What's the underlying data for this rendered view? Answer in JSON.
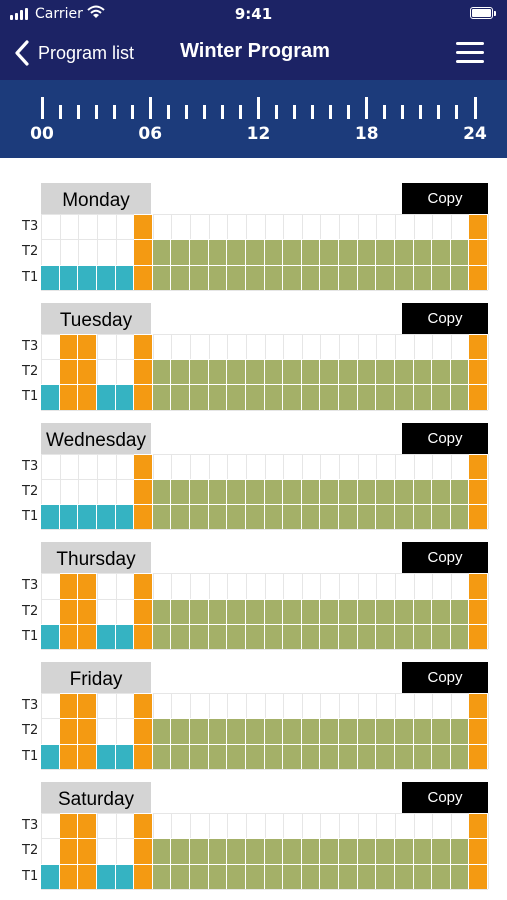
{
  "status_bar": {
    "carrier": "Carrier",
    "time": "9:41"
  },
  "nav": {
    "back_label": "Program list",
    "title": "Winter Program"
  },
  "timeline": {
    "labels": [
      "00",
      "06",
      "12",
      "18",
      "24"
    ]
  },
  "levels": [
    "T3",
    "T2",
    "T1"
  ],
  "colors": {
    "header": "#1c2365",
    "timeline": "#1c3b7b",
    "T1": "#35b3c2",
    "T2": "#f49a12",
    "T3": "#f49a12",
    "comfort": "#a4b068",
    "label_bg": "#d4d4d4"
  },
  "days": [
    {
      "name": "Monday",
      "copy_label": "Copy",
      "schedule": [
        1,
        1,
        1,
        1,
        1,
        1,
        1,
        1,
        1,
        1,
        3,
        3,
        2,
        2,
        2,
        2,
        2,
        2,
        2,
        2,
        2,
        2,
        2,
        2,
        2,
        2,
        2,
        2,
        2,
        2,
        2,
        2,
        2,
        2,
        2,
        2,
        2,
        2,
        2,
        2,
        2,
        2,
        2,
        2,
        2,
        2,
        3,
        3
      ]
    },
    {
      "name": "Tuesday",
      "copy_label": "Copy",
      "schedule": [
        1,
        1,
        3,
        3,
        3,
        3,
        1,
        1,
        1,
        1,
        3,
        3,
        2,
        2,
        2,
        2,
        2,
        2,
        2,
        2,
        2,
        2,
        2,
        2,
        2,
        2,
        2,
        2,
        2,
        2,
        2,
        2,
        2,
        2,
        2,
        2,
        2,
        2,
        2,
        2,
        2,
        2,
        2,
        2,
        2,
        2,
        3,
        3
      ]
    },
    {
      "name": "Wednesday",
      "copy_label": "Copy",
      "schedule": [
        1,
        1,
        1,
        1,
        1,
        1,
        1,
        1,
        1,
        1,
        3,
        3,
        2,
        2,
        2,
        2,
        2,
        2,
        2,
        2,
        2,
        2,
        2,
        2,
        2,
        2,
        2,
        2,
        2,
        2,
        2,
        2,
        2,
        2,
        2,
        2,
        2,
        2,
        2,
        2,
        2,
        2,
        2,
        2,
        2,
        2,
        3,
        3
      ]
    },
    {
      "name": "Thursday",
      "copy_label": "Copy",
      "schedule": [
        1,
        1,
        3,
        3,
        3,
        3,
        1,
        1,
        1,
        1,
        3,
        3,
        2,
        2,
        2,
        2,
        2,
        2,
        2,
        2,
        2,
        2,
        2,
        2,
        2,
        2,
        2,
        2,
        2,
        2,
        2,
        2,
        2,
        2,
        2,
        2,
        2,
        2,
        2,
        2,
        2,
        2,
        2,
        2,
        2,
        2,
        3,
        3
      ]
    },
    {
      "name": "Friday",
      "copy_label": "Copy",
      "schedule": [
        1,
        1,
        3,
        3,
        3,
        3,
        1,
        1,
        1,
        1,
        3,
        3,
        2,
        2,
        2,
        2,
        2,
        2,
        2,
        2,
        2,
        2,
        2,
        2,
        2,
        2,
        2,
        2,
        2,
        2,
        2,
        2,
        2,
        2,
        2,
        2,
        2,
        2,
        2,
        2,
        2,
        2,
        2,
        2,
        2,
        2,
        3,
        3
      ]
    },
    {
      "name": "Saturday",
      "copy_label": "Copy",
      "schedule": [
        1,
        1,
        3,
        3,
        3,
        3,
        1,
        1,
        1,
        1,
        3,
        3,
        2,
        2,
        2,
        2,
        2,
        2,
        2,
        2,
        2,
        2,
        2,
        2,
        2,
        2,
        2,
        2,
        2,
        2,
        2,
        2,
        2,
        2,
        2,
        2,
        2,
        2,
        2,
        2,
        2,
        2,
        2,
        2,
        2,
        2,
        3,
        3
      ]
    }
  ],
  "icons": {
    "back": "chevron-left-icon",
    "menu": "hamburger-menu-icon",
    "signal": "signal-icon",
    "wifi": "wifi-icon",
    "battery": "battery-icon"
  }
}
